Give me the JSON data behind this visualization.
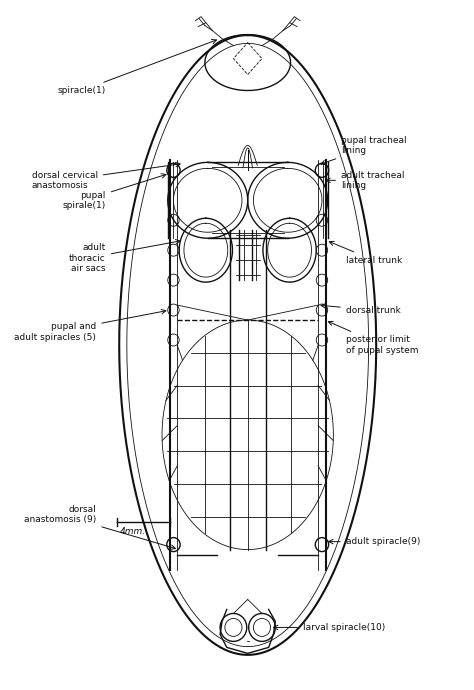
{
  "background_color": "#ffffff",
  "ink_color": "#111111",
  "fig_width": 4.74,
  "fig_height": 6.9,
  "dpi": 100,
  "labels": {
    "spiracle1": "spiracle(1)",
    "dorsal_cervical": "dorsal cervical\nanastomosis",
    "pupal_spiracle1": "pupal\nspirale(1)",
    "adult_thoracic": "adult\nthoracic\nair sacs",
    "pupal_adult_spiracles": "pupal and\nadult spiracles (5)",
    "dorsal_anastomosis9": "dorsal\nanastomosis (9)",
    "scale": "4mm.",
    "pupal_tracheal": "pupal tracheal\nlining",
    "adult_tracheal": "adult tracheal\nlining",
    "lateral_trunk": "lateral trunk",
    "dorsal_trunk": "dorsal trunk",
    "posterior_limit": "posterior limit\nof pupal system",
    "adult_spiracle9": "adult spiracle(9)",
    "larval_spiracle10": "larval spiracle(10)"
  }
}
